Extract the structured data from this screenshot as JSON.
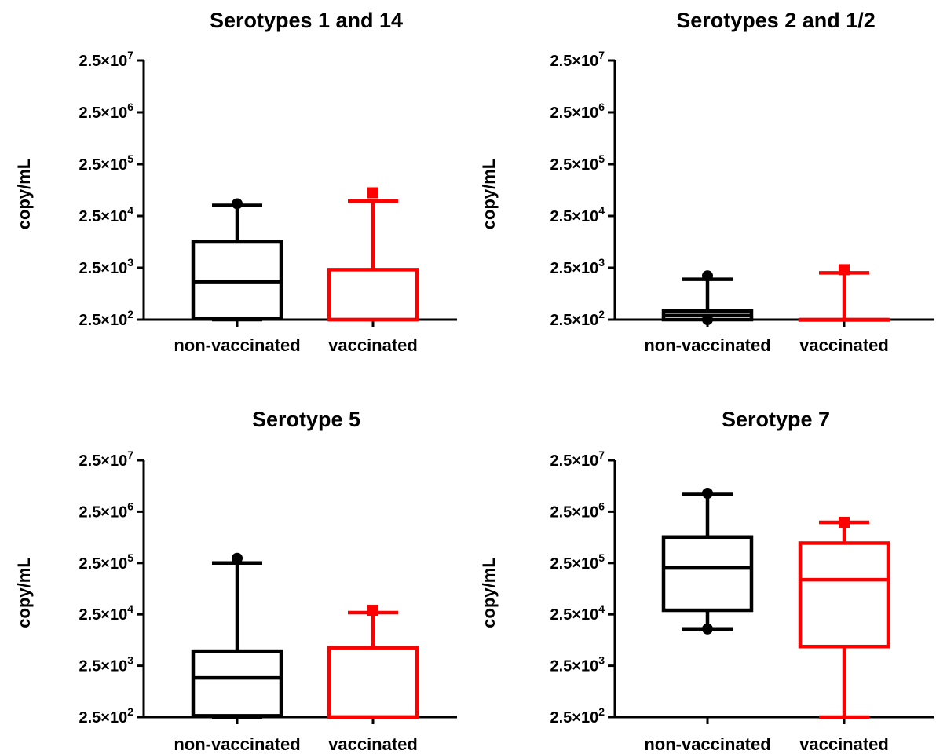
{
  "chart_data": [
    {
      "type": "boxplot",
      "title": "Serotypes 1 and 14",
      "ylabel": "copy/mL",
      "yscale": "log",
      "ylim": [
        250,
        25000000
      ],
      "yticks": [
        250,
        2500,
        25000,
        250000,
        2500000,
        25000000
      ],
      "ytick_labels": [
        {
          "base": "2.5×10",
          "exp": "2"
        },
        {
          "base": "2.5×10",
          "exp": "3"
        },
        {
          "base": "2.5×10",
          "exp": "4"
        },
        {
          "base": "2.5×10",
          "exp": "5"
        },
        {
          "base": "2.5×10",
          "exp": "6"
        },
        {
          "base": "2.5×10",
          "exp": "7"
        }
      ],
      "categories": [
        "non-vaccinated",
        "vaccinated"
      ],
      "series": [
        {
          "category": "non-vaccinated",
          "color": "#000000",
          "marker": "circle",
          "whisker_low": 250,
          "q1": 265,
          "median": 1350,
          "q3": 7900,
          "whisker_high": 40000,
          "outliers": [
            43000
          ]
        },
        {
          "category": "vaccinated",
          "color": "#ff0000",
          "marker": "square",
          "whisker_low": 250,
          "q1": 250,
          "median": 250,
          "q3": 2300,
          "whisker_high": 48000,
          "outliers": [
            70000
          ]
        }
      ]
    },
    {
      "type": "boxplot",
      "title": "Serotypes 2 and 1/2",
      "ylabel": "copy/mL",
      "yscale": "log",
      "ylim": [
        250,
        25000000
      ],
      "yticks": [
        250,
        2500,
        25000,
        250000,
        2500000,
        25000000
      ],
      "ytick_labels": [
        {
          "base": "2.5×10",
          "exp": "2"
        },
        {
          "base": "2.5×10",
          "exp": "3"
        },
        {
          "base": "2.5×10",
          "exp": "4"
        },
        {
          "base": "2.5×10",
          "exp": "5"
        },
        {
          "base": "2.5×10",
          "exp": "6"
        },
        {
          "base": "2.5×10",
          "exp": "7"
        }
      ],
      "categories": [
        "non-vaccinated",
        "vaccinated"
      ],
      "series": [
        {
          "category": "non-vaccinated",
          "color": "#000000",
          "marker": "circle",
          "whisker_low": 250,
          "q1": 250,
          "median": 300,
          "q3": 370,
          "whisker_high": 1500,
          "outliers": [
            250,
            1750
          ]
        },
        {
          "category": "vaccinated",
          "color": "#ff0000",
          "marker": "square",
          "whisker_low": 250,
          "q1": 250,
          "median": 250,
          "q3": 250,
          "whisker_high": 2000,
          "outliers": [
            2300
          ]
        }
      ]
    },
    {
      "type": "boxplot",
      "title": "Serotype 5",
      "ylabel": "copy/mL",
      "yscale": "log",
      "ylim": [
        250,
        25000000
      ],
      "yticks": [
        250,
        2500,
        25000,
        250000,
        2500000,
        25000000
      ],
      "ytick_labels": [
        {
          "base": "2.5×10",
          "exp": "2"
        },
        {
          "base": "2.5×10",
          "exp": "3"
        },
        {
          "base": "2.5×10",
          "exp": "4"
        },
        {
          "base": "2.5×10",
          "exp": "5"
        },
        {
          "base": "2.5×10",
          "exp": "6"
        },
        {
          "base": "2.5×10",
          "exp": "7"
        }
      ],
      "categories": [
        "non-vaccinated",
        "vaccinated"
      ],
      "series": [
        {
          "category": "non-vaccinated",
          "color": "#000000",
          "marker": "circle",
          "whisker_low": 250,
          "q1": 265,
          "median": 1450,
          "q3": 4800,
          "whisker_high": 250000,
          "outliers": [
            310000
          ]
        },
        {
          "category": "vaccinated",
          "color": "#ff0000",
          "marker": "square",
          "whisker_low": 250,
          "q1": 250,
          "median": 250,
          "q3": 5600,
          "whisker_high": 27000,
          "outliers": [
            30000
          ]
        }
      ]
    },
    {
      "type": "boxplot",
      "title": "Serotype 7",
      "ylabel": "copy/mL",
      "yscale": "log",
      "ylim": [
        250,
        25000000
      ],
      "yticks": [
        250,
        2500,
        25000,
        250000,
        2500000,
        25000000
      ],
      "ytick_labels": [
        {
          "base": "2.5×10",
          "exp": "2"
        },
        {
          "base": "2.5×10",
          "exp": "3"
        },
        {
          "base": "2.5×10",
          "exp": "4"
        },
        {
          "base": "2.5×10",
          "exp": "5"
        },
        {
          "base": "2.5×10",
          "exp": "6"
        },
        {
          "base": "2.5×10",
          "exp": "7"
        }
      ],
      "categories": [
        "non-vaccinated",
        "vaccinated"
      ],
      "series": [
        {
          "category": "non-vaccinated",
          "color": "#000000",
          "marker": "circle",
          "whisker_low": 13000,
          "q1": 30000,
          "median": 200000,
          "q3": 800000,
          "whisker_high": 5400000,
          "outliers": [
            13000,
            5700000
          ]
        },
        {
          "category": "vaccinated",
          "color": "#ff0000",
          "marker": "square",
          "whisker_low": 250,
          "q1": 5900,
          "median": 118000,
          "q3": 610000,
          "whisker_high": 1550000,
          "outliers": [
            1550000
          ]
        }
      ]
    }
  ]
}
